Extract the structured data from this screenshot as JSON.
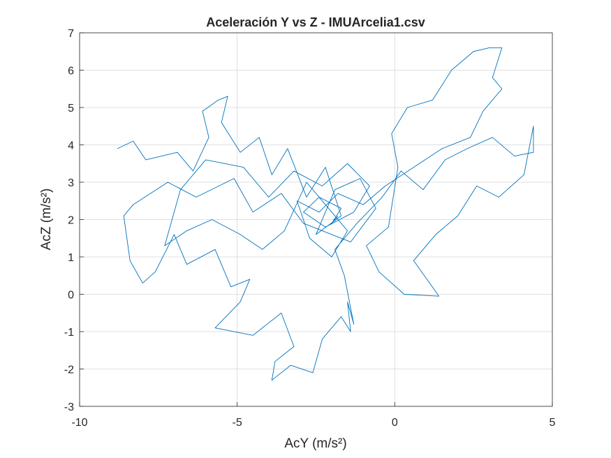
{
  "chart_data": {
    "type": "line",
    "title": "Aceleración Y vs Z - IMUArcelia1.csv",
    "x_label": "AcY (m/s²)",
    "y_label": "AcZ (m/s²)",
    "color": "#0072bd",
    "grid": true,
    "xlim": [
      -10,
      5
    ],
    "ylim": [
      -3,
      7
    ],
    "xticks": [
      -10,
      -5,
      0,
      5
    ],
    "yticks": [
      -3,
      -2,
      -1,
      0,
      1,
      2,
      3,
      4,
      5,
      6,
      7
    ],
    "x": [
      -8.8,
      -8.3,
      -7.9,
      -6.9,
      -6.4,
      -5.9,
      -6.1,
      -5.6,
      -5.3,
      -5.5,
      -4.9,
      -4.3,
      -3.9,
      -3.4,
      -2.8,
      -2.2,
      -1.7,
      -2.5,
      -1.9,
      -1.1,
      -0.6,
      -1.4,
      -2.9,
      -3.6,
      -4.5,
      -5.1,
      -6.3,
      -7.2,
      -8.3,
      -8.6,
      -8.4,
      -8.0,
      -7.6,
      -7.0,
      -6.6,
      -5.7,
      -5.2,
      -4.6,
      -4.9,
      -5.7,
      -4.5,
      -3.6,
      -3.2,
      -3.8,
      -3.9,
      -3.3,
      -2.6,
      -2.3,
      -1.7,
      -1.4,
      -1.5,
      -1.3,
      -1.6,
      -1.9,
      -1.2,
      -0.4,
      0.2,
      0.9,
      1.6,
      2.3,
      3.1,
      3.8,
      4.4,
      4.4,
      4.1,
      3.3,
      2.6,
      2.0,
      1.3,
      0.6,
      1.4,
      0.3,
      -0.5,
      -0.9,
      -0.2,
      0.1,
      -0.1,
      0.4,
      1.2,
      1.8,
      2.5,
      3.0,
      3.4,
      3.1,
      3.4,
      2.8,
      2.4,
      1.5,
      0.6,
      -0.3,
      -1.0,
      -1.8,
      -2.4,
      -3.1,
      -2.7,
      -2.0,
      -1.5,
      -2.1,
      -2.8,
      -3.5,
      -4.2,
      -4.9,
      -5.8,
      -6.6,
      -7.3,
      -6.8,
      -6.0,
      -4.8,
      -4.0,
      -3.2,
      -2.3,
      -1.5,
      -0.8,
      -1.3,
      -2.2,
      -2.9,
      -2.4,
      -1.7,
      -2.0,
      -1.8
    ],
    "values": [
      3.9,
      4.1,
      3.6,
      3.8,
      3.3,
      4.2,
      4.9,
      5.2,
      5.3,
      4.6,
      3.8,
      4.2,
      3.2,
      3.9,
      2.6,
      3.4,
      2.1,
      1.6,
      2.8,
      3.1,
      2.3,
      1.4,
      1.9,
      2.7,
      2.2,
      3.1,
      2.6,
      3.0,
      2.4,
      2.1,
      0.9,
      0.3,
      0.6,
      1.6,
      0.8,
      1.2,
      0.2,
      0.4,
      -0.2,
      -0.9,
      -1.1,
      -0.5,
      -1.4,
      -1.8,
      -2.3,
      -1.9,
      -2.1,
      -1.2,
      -0.6,
      -1.0,
      -0.2,
      -0.8,
      0.5,
      1.2,
      1.9,
      2.6,
      3.3,
      2.8,
      3.6,
      3.9,
      4.2,
      3.7,
      3.8,
      4.5,
      3.2,
      2.6,
      2.9,
      2.1,
      1.6,
      0.9,
      -0.05,
      0.0,
      0.6,
      1.3,
      1.8,
      3.4,
      4.3,
      5.0,
      5.2,
      6.0,
      6.5,
      6.6,
      6.6,
      5.8,
      5.5,
      4.9,
      4.2,
      3.9,
      3.4,
      2.9,
      2.4,
      2.7,
      2.2,
      2.5,
      1.5,
      1.0,
      1.7,
      2.3,
      3.0,
      1.7,
      1.2,
      1.6,
      2.0,
      1.7,
      1.3,
      2.8,
      3.6,
      3.4,
      2.6,
      3.3,
      2.9,
      3.5,
      2.9,
      2.2,
      1.8,
      2.2,
      2.6,
      2.3,
      1.9,
      2.1
    ]
  }
}
